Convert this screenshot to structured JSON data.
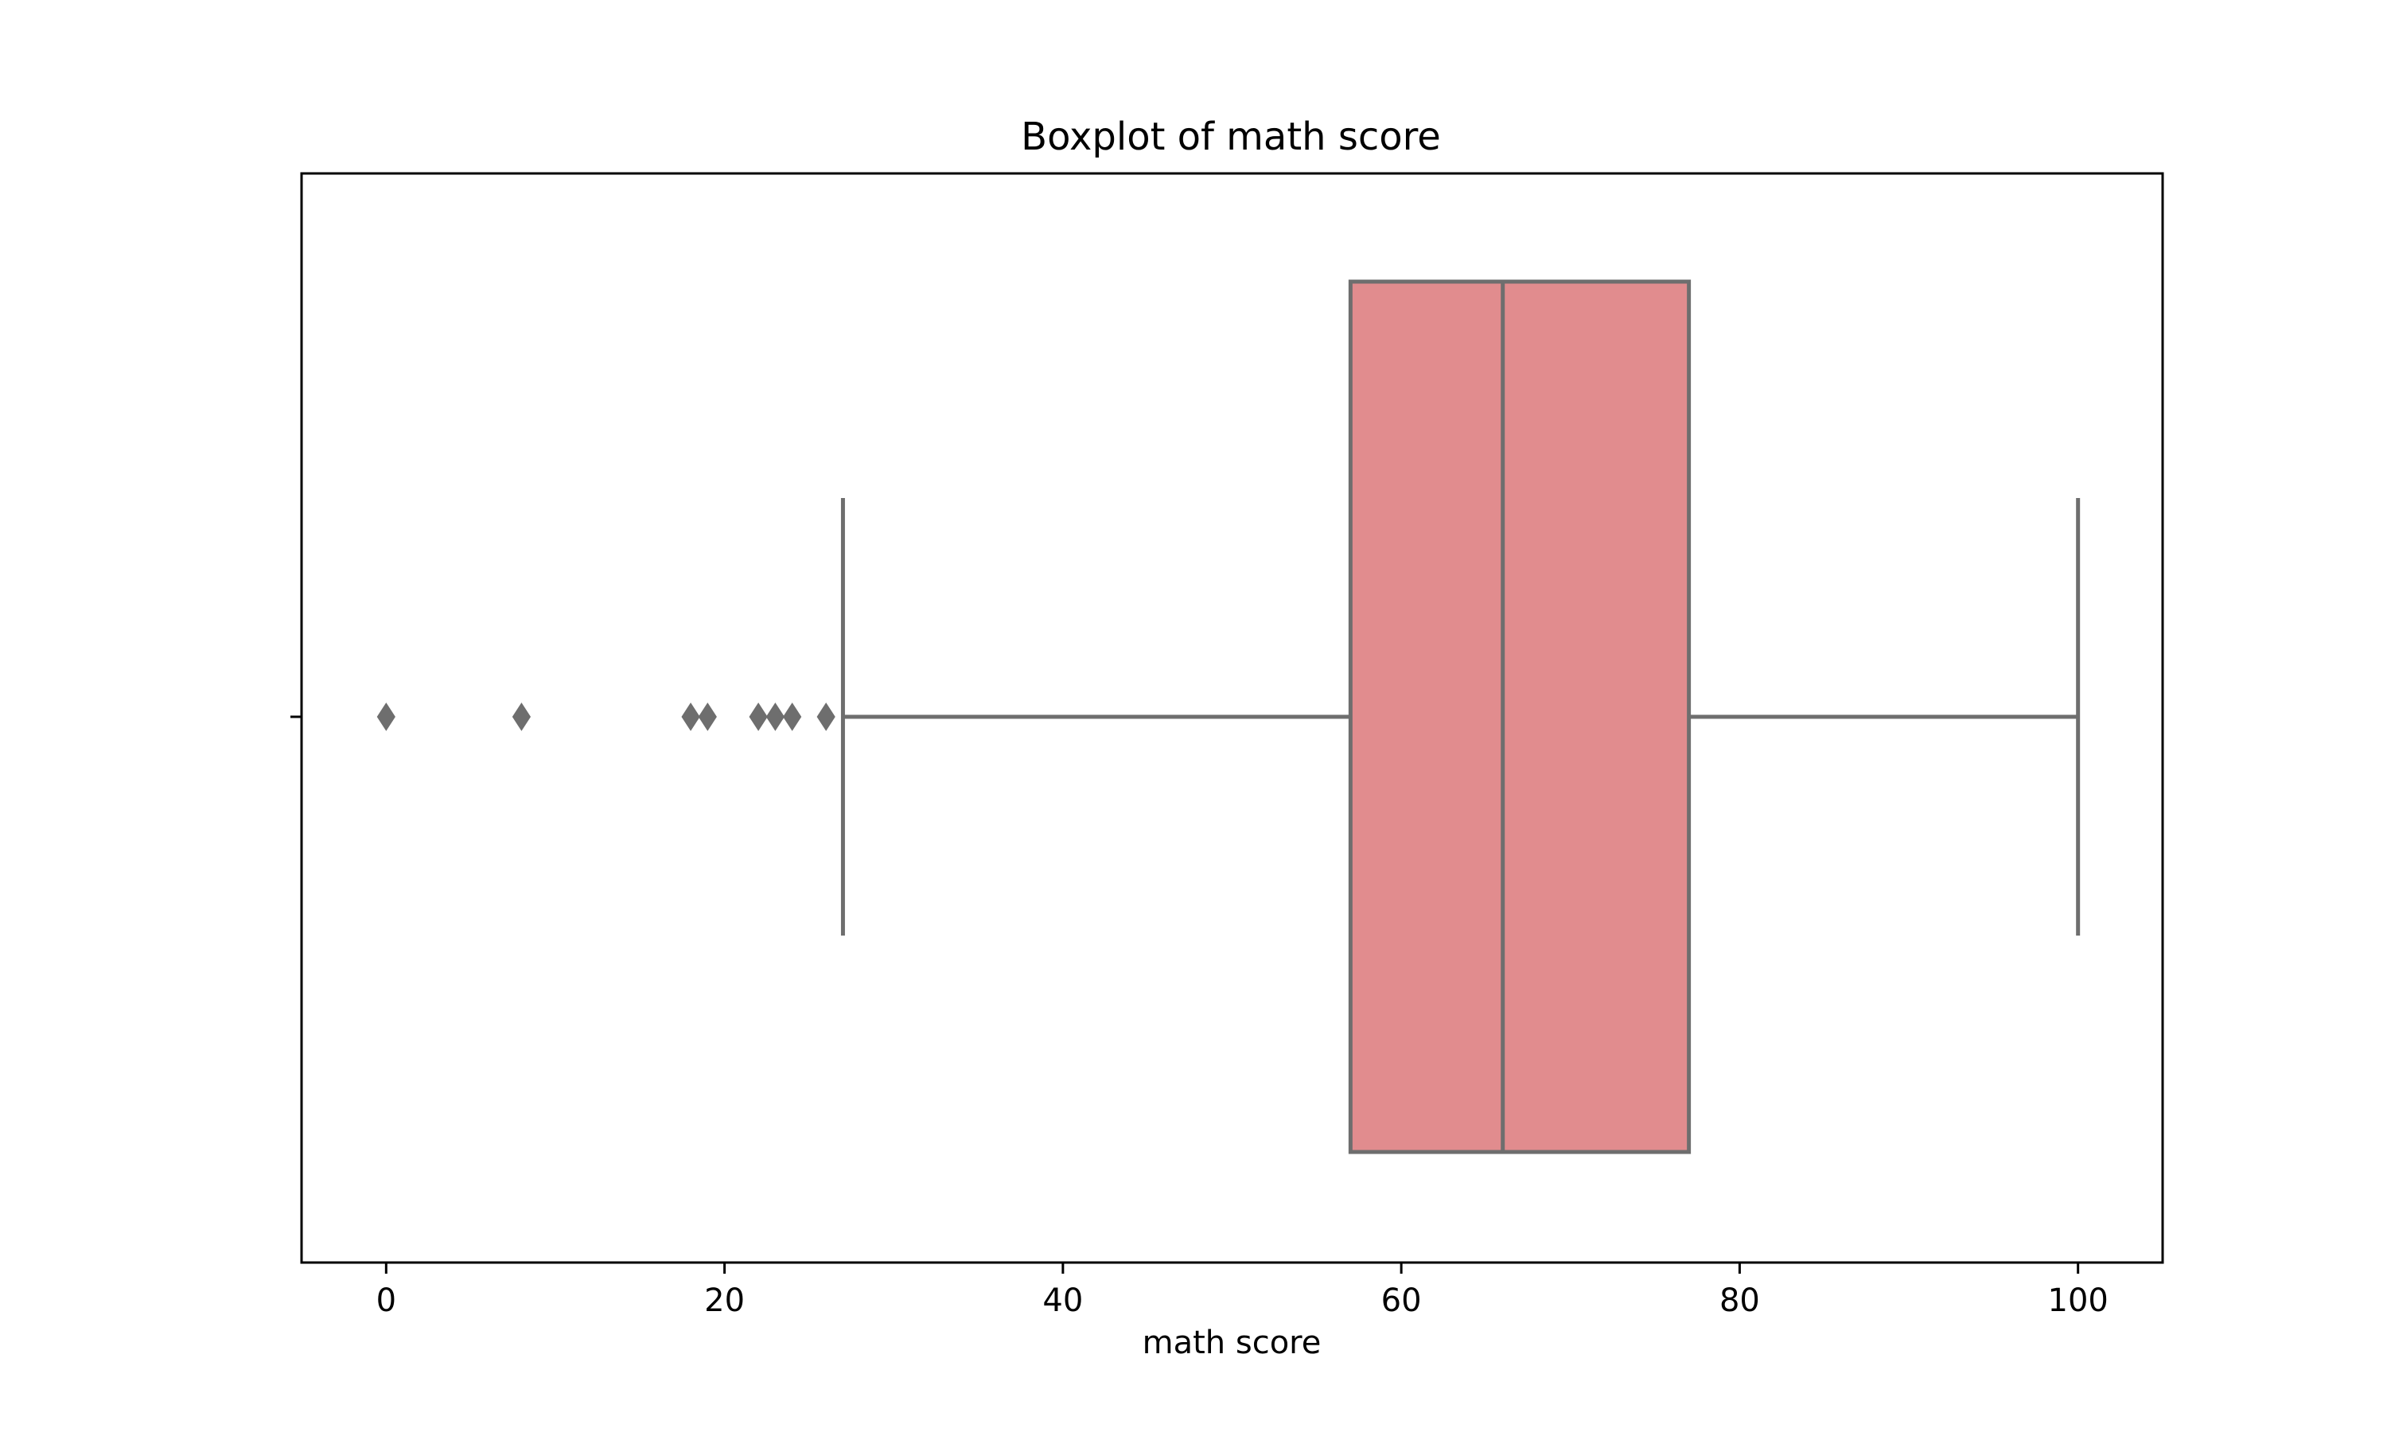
{
  "chart_data": {
    "type": "box",
    "title": "Boxplot of math score",
    "xlabel": "math score",
    "ylabel": "",
    "orientation": "horizontal",
    "xlim": [
      -5,
      105
    ],
    "xticks": [
      0,
      20,
      40,
      60,
      80,
      100
    ],
    "xtick_labels": [
      "0",
      "20",
      "40",
      "60",
      "80",
      "100"
    ],
    "grid": false,
    "box": {
      "whisker_low": 27,
      "q1": 57,
      "median": 66,
      "q3": 77,
      "whisker_high": 100
    },
    "outliers": [
      0,
      8,
      18,
      19,
      22,
      23,
      24,
      26
    ],
    "colors": {
      "box_fill": "#e18c8e",
      "line": "#6e6e6e",
      "frame": "#000000"
    }
  }
}
